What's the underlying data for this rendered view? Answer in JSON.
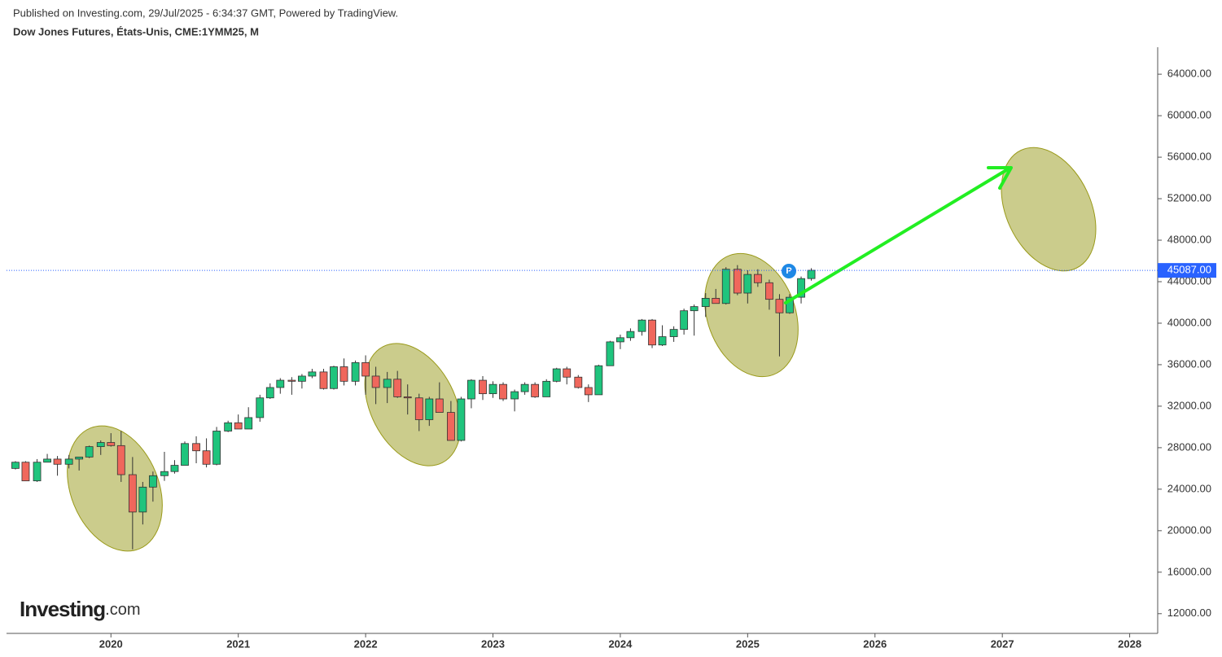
{
  "chart_data": {
    "type": "candlestick",
    "source": "Published on Investing.com, 29/Jul/2025 - 6:34:37 GMT, Powered by TradingView.",
    "title": "Dow Jones Futures, États-Unis, CME:1YMM25, M",
    "logo": {
      "name": "Investing",
      "suffix": ".com"
    },
    "marker_label": "P",
    "up_color": "#1fc47d",
    "down_color": "#f0675c",
    "x": [
      2019.25,
      2019.33,
      2019.42,
      2019.5,
      2019.58,
      2019.67,
      2019.75,
      2019.83,
      2019.92,
      2020,
      2020.08,
      2020.17,
      2020.25,
      2020.33,
      2020.42,
      2020.5,
      2020.58,
      2020.67,
      2020.75,
      2020.83,
      2020.92,
      2021,
      2021.08,
      2021.17,
      2021.25,
      2021.33,
      2021.42,
      2021.5,
      2021.58,
      2021.67,
      2021.75,
      2021.83,
      2021.92,
      2022,
      2022.08,
      2022.17,
      2022.25,
      2022.33,
      2022.42,
      2022.5,
      2022.58,
      2022.67,
      2022.75,
      2022.83,
      2022.92,
      2023,
      2023.08,
      2023.17,
      2023.25,
      2023.33,
      2023.42,
      2023.5,
      2023.58,
      2023.67,
      2023.75,
      2023.83,
      2023.92,
      2024,
      2024.08,
      2024.17,
      2024.25,
      2024.33,
      2024.42,
      2024.5,
      2024.58,
      2024.67,
      2024.75,
      2024.83,
      2024.92,
      2025,
      2025.08,
      2025.17,
      2025.25,
      2025.33,
      2025.42,
      2025.5
    ],
    "open": [
      26000,
      26600,
      24800,
      26600,
      26900,
      26400,
      26900,
      27100,
      28100,
      28500,
      28200,
      25400,
      21800,
      24200,
      25300,
      25700,
      26300,
      28400,
      27700,
      26400,
      29600,
      30400,
      29800,
      30900,
      32800,
      33800,
      34500,
      34400,
      34900,
      35300,
      33700,
      35800,
      34400,
      36200,
      34900,
      33800,
      34600,
      32900,
      32800,
      30700,
      32700,
      31400,
      28700,
      32700,
      34500,
      33200,
      34100,
      32700,
      33400,
      34100,
      32900,
      34400,
      35600,
      34800,
      33800,
      33100,
      35900,
      38200,
      38600,
      39200,
      40300,
      37900,
      38700,
      39400,
      41200,
      41600,
      42400,
      41900,
      45200,
      42900,
      44700,
      43900,
      42300,
      41000,
      42500,
      44300
    ],
    "high": [
      26700,
      26700,
      26900,
      27400,
      27200,
      27300,
      27100,
      28200,
      28700,
      29400,
      29600,
      27100,
      24700,
      25700,
      27600,
      26800,
      28600,
      29100,
      28900,
      30000,
      30600,
      31200,
      31900,
      33100,
      34200,
      34700,
      34800,
      35100,
      35600,
      35600,
      35900,
      36600,
      36400,
      36900,
      35800,
      35300,
      35400,
      34100,
      33200,
      32900,
      34300,
      32500,
      32900,
      34600,
      34900,
      34400,
      34300,
      33600,
      34300,
      34300,
      34600,
      35700,
      35800,
      35000,
      34100,
      36000,
      38300,
      38900,
      39500,
      40400,
      40400,
      39800,
      39700,
      41400,
      41800,
      42900,
      43300,
      45400,
      45600,
      45100,
      45200,
      44200,
      42800,
      42800,
      44500,
      45300
    ],
    "low": [
      25900,
      24800,
      24700,
      26600,
      25300,
      26000,
      25800,
      27000,
      27300,
      28100,
      24700,
      18200,
      20600,
      22800,
      24800,
      25500,
      26300,
      26500,
      26100,
      26300,
      29500,
      29800,
      29800,
      30500,
      32700,
      33200,
      33100,
      33700,
      34700,
      33600,
      33600,
      34000,
      34000,
      33100,
      32200,
      32300,
      32800,
      31200,
      29600,
      30100,
      31600,
      28700,
      28600,
      31800,
      32600,
      32800,
      32500,
      31500,
      33100,
      32800,
      32900,
      34300,
      34100,
      33700,
      32400,
      33100,
      35900,
      37500,
      38300,
      38800,
      37600,
      37800,
      38200,
      38900,
      38800,
      40600,
      41900,
      41800,
      42700,
      41900,
      43500,
      41300,
      36800,
      40900,
      41900,
      44100
    ],
    "close": [
      26600,
      24800,
      26600,
      26900,
      26400,
      26900,
      27100,
      28100,
      28500,
      28200,
      25400,
      21800,
      24200,
      25300,
      25700,
      26300,
      28400,
      27700,
      26400,
      29600,
      30400,
      29800,
      30900,
      32800,
      33800,
      34500,
      34400,
      34900,
      35300,
      33700,
      35800,
      34400,
      36200,
      34900,
      33800,
      34600,
      32900,
      32800,
      30700,
      32700,
      31400,
      28700,
      32700,
      34500,
      33200,
      34100,
      32700,
      33400,
      34100,
      32900,
      34400,
      35600,
      34800,
      33800,
      33100,
      35900,
      38200,
      38600,
      39200,
      40300,
      37900,
      38700,
      39400,
      41200,
      41600,
      42400,
      41900,
      45200,
      42900,
      44700,
      43900,
      42300,
      41000,
      42500,
      44300,
      45100
    ],
    "xlim": [
      2019.18,
      2028.22
    ],
    "xticks": [
      2020,
      2021,
      2022,
      2023,
      2024,
      2025,
      2026,
      2027,
      2028
    ],
    "ylim": [
      10100,
      66600
    ],
    "yticks": [
      {
        "value": 12000,
        "label": "12000.00"
      },
      {
        "value": 16000,
        "label": "16000.00"
      },
      {
        "value": 20000,
        "label": "20000.00"
      },
      {
        "value": 24000,
        "label": "24000.00"
      },
      {
        "value": 28000,
        "label": "28000.00"
      },
      {
        "value": 32000,
        "label": "32000.00"
      },
      {
        "value": 36000,
        "label": "36000.00"
      },
      {
        "value": 40000,
        "label": "40000.00"
      },
      {
        "value": 44000,
        "label": "44000.00"
      },
      {
        "value": 48000,
        "label": "48000.00"
      },
      {
        "value": 52000,
        "label": "52000.00"
      },
      {
        "value": 56000,
        "label": "56000.00"
      },
      {
        "value": 60000,
        "label": "60000.00"
      },
      {
        "value": 64000,
        "label": "64000.00"
      }
    ],
    "last_price": {
      "value": 45087,
      "label": "45087.00"
    },
    "last_price_color": "#2962ff"
  }
}
